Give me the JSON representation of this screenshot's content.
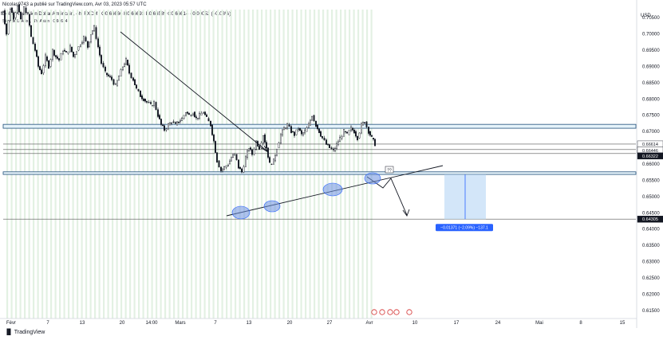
{
  "header": {
    "publisher": "Nicolas9743 a publié sur TradingView.com, Avr 03, 2023 05:57 UTC",
    "symbol_line": "Dollar Australien/Dollar Américain, 4h, FXCM",
    "ohlc": "O0.66666 H0.66693 B0.66589 C0.66614 −0.00052 (−0.08%)",
    "session_line": "Séance London, NY, Asian",
    "session_value": "0.66614"
  },
  "currency": "USD",
  "price_tags": [
    {
      "label": "0.66614",
      "bg": "#ffffff",
      "fg": "#131722"
    },
    {
      "label": "03:02:11",
      "bg": "#ffffff",
      "fg": "#131722"
    },
    {
      "label": "0.66446",
      "bg": "#ffffff",
      "fg": "#131722"
    },
    {
      "label": "0.66322",
      "bg": "#131722",
      "fg": "#ffffff"
    },
    {
      "label": "0.64305",
      "bg": "#131722",
      "fg": "#ffffff"
    }
  ],
  "measure_label": "−0.01371 (−2.09%) −137.1",
  "question_marks": "??",
  "footer": "TradingView",
  "colors": {
    "up_candle": "#131722",
    "down_candle": "#131722",
    "session_stripe": "#e3f1e3",
    "zone_fill": "#e6f3fa",
    "zone_line": "#1f4e79",
    "measure_fill": "#b5d6f5",
    "measure_label_bg": "#2962ff",
    "ellipse": "#6c8fe0"
  },
  "chart_data": {
    "type": "candlestick",
    "symbol": "AUD/USD",
    "timeframe": "4h",
    "y_axis": {
      "ticks": [
        0.615,
        0.62,
        0.625,
        0.63,
        0.635,
        0.64,
        0.645,
        0.65,
        0.655,
        0.66,
        0.665,
        0.67,
        0.675,
        0.68,
        0.685,
        0.69,
        0.695,
        0.7,
        0.705
      ],
      "tick_labels": [
        "0.61500",
        "0.62000",
        "0.62500",
        "0.63000",
        "0.63500",
        "0.64000",
        "0.64500",
        "0.65000",
        "0.65500",
        "0.66000",
        "0.66500",
        "0.67000",
        "0.67500",
        "0.68000",
        "0.68500",
        "0.69000",
        "0.69500",
        "0.70000",
        "0.70500"
      ],
      "range": [
        0.6125,
        0.7075
      ]
    },
    "x_axis": {
      "labels": [
        "Févr",
        "7",
        "13",
        "20",
        "14:00",
        "Mars",
        "7",
        "13",
        "20",
        "27",
        "Avr",
        "10",
        "17",
        "24",
        "Mai",
        "8",
        "15"
      ]
    },
    "price_path": [
      [
        0,
        0.706
      ],
      [
        4,
        0.7072
      ],
      [
        8,
        0.7
      ],
      [
        13,
        0.708
      ],
      [
        17,
        0.705
      ],
      [
        22,
        0.709
      ],
      [
        26,
        0.704
      ],
      [
        30,
        0.708
      ],
      [
        35,
        0.706
      ],
      [
        39,
        0.699
      ],
      [
        44,
        0.695
      ],
      [
        48,
        0.69
      ],
      [
        52,
        0.688
      ],
      [
        57,
        0.693
      ],
      [
        61,
        0.69
      ],
      [
        66,
        0.695
      ],
      [
        70,
        0.693
      ],
      [
        74,
        0.692
      ],
      [
        79,
        0.695
      ],
      [
        83,
        0.694
      ],
      [
        88,
        0.696
      ],
      [
        92,
        0.693
      ],
      [
        96,
        0.695
      ],
      [
        101,
        0.697
      ],
      [
        105,
        0.699
      ],
      [
        110,
        0.696
      ],
      [
        114,
        0.7
      ],
      [
        118,
        0.702
      ],
      [
        123,
        0.696
      ],
      [
        127,
        0.691
      ],
      [
        132,
        0.688
      ],
      [
        136,
        0.687
      ],
      [
        140,
        0.686
      ],
      [
        145,
        0.684
      ],
      [
        149,
        0.687
      ],
      [
        154,
        0.69
      ],
      [
        158,
        0.692
      ],
      [
        162,
        0.688
      ],
      [
        167,
        0.686
      ],
      [
        171,
        0.683
      ],
      [
        176,
        0.681
      ],
      [
        180,
        0.68
      ],
      [
        184,
        0.679
      ],
      [
        189,
        0.678
      ],
      [
        193,
        0.679
      ],
      [
        198,
        0.675
      ],
      [
        202,
        0.672
      ],
      [
        206,
        0.6705
      ],
      [
        211,
        0.672
      ],
      [
        215,
        0.673
      ],
      [
        220,
        0.672
      ],
      [
        224,
        0.673
      ],
      [
        228,
        0.674
      ],
      [
        233,
        0.676
      ],
      [
        237,
        0.675
      ],
      [
        242,
        0.676
      ],
      [
        246,
        0.674
      ],
      [
        250,
        0.675
      ],
      [
        255,
        0.676
      ],
      [
        259,
        0.674
      ],
      [
        264,
        0.672
      ],
      [
        268,
        0.667
      ],
      [
        272,
        0.661
      ],
      [
        277,
        0.658
      ],
      [
        281,
        0.659
      ],
      [
        286,
        0.66
      ],
      [
        290,
        0.662
      ],
      [
        294,
        0.663
      ],
      [
        299,
        0.659
      ],
      [
        303,
        0.6575
      ],
      [
        308,
        0.662
      ],
      [
        312,
        0.665
      ],
      [
        316,
        0.663
      ],
      [
        321,
        0.667
      ],
      [
        325,
        0.665
      ],
      [
        330,
        0.669
      ],
      [
        334,
        0.665
      ],
      [
        338,
        0.66
      ],
      [
        343,
        0.661
      ],
      [
        347,
        0.665
      ],
      [
        352,
        0.669
      ],
      [
        356,
        0.671
      ],
      [
        360,
        0.672
      ],
      [
        365,
        0.67
      ],
      [
        369,
        0.669
      ],
      [
        374,
        0.671
      ],
      [
        378,
        0.669
      ],
      [
        382,
        0.67
      ],
      [
        387,
        0.672
      ],
      [
        391,
        0.675
      ],
      [
        396,
        0.672
      ],
      [
        400,
        0.67
      ],
      [
        404,
        0.668
      ],
      [
        409,
        0.666
      ],
      [
        413,
        0.665
      ],
      [
        418,
        0.664
      ],
      [
        422,
        0.666
      ],
      [
        426,
        0.668
      ],
      [
        431,
        0.67
      ],
      [
        435,
        0.669
      ],
      [
        440,
        0.671
      ],
      [
        444,
        0.67
      ],
      [
        448,
        0.668
      ],
      [
        453,
        0.672
      ],
      [
        457,
        0.673
      ],
      [
        462,
        0.67
      ],
      [
        466,
        0.668
      ],
      [
        470,
        0.6661
      ]
    ],
    "levels": {
      "resistance_zone": [
        0.671,
        0.6722
      ],
      "support_zone": [
        0.6568,
        0.6576
      ],
      "grey_lines": [
        0.66614,
        0.66446,
        0.66322,
        0.64305
      ]
    },
    "measure": {
      "from": 0.6568,
      "to": 0.64305,
      "change": -0.01371,
      "percent": -2.09,
      "pips": -137.1
    }
  }
}
